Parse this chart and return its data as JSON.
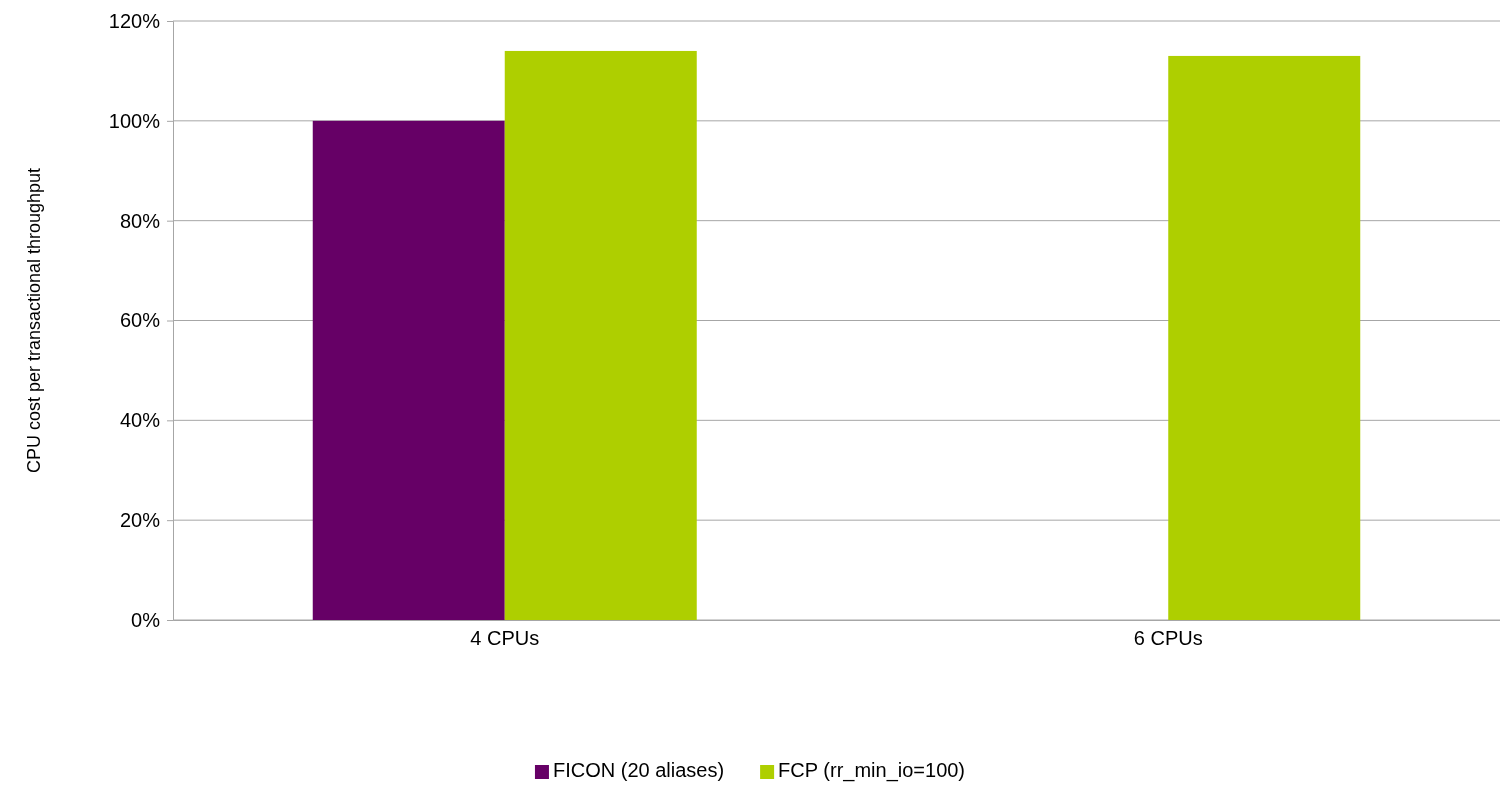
{
  "chart_data": {
    "type": "bar",
    "ylabel": "CPU cost per transactional throughput",
    "categories": [
      "4 CPUs",
      "6 CPUs"
    ],
    "series": [
      {
        "name": "FICON (20 aliases)",
        "color": "#660066",
        "values": [
          100,
          null
        ]
      },
      {
        "name": "FCP (rr_min_io=100)",
        "color": "#aecf00",
        "values": [
          114,
          113
        ]
      }
    ],
    "ylim": [
      0,
      120
    ],
    "yticks": [
      {
        "value": 0,
        "label": "0%"
      },
      {
        "value": 20,
        "label": "20%"
      },
      {
        "value": 40,
        "label": "40%"
      },
      {
        "value": 60,
        "label": "60%"
      },
      {
        "value": 80,
        "label": "80%"
      },
      {
        "value": 100,
        "label": "100%"
      },
      {
        "value": 120,
        "label": "120%"
      }
    ],
    "grid": "y",
    "legend": "bottom"
  }
}
